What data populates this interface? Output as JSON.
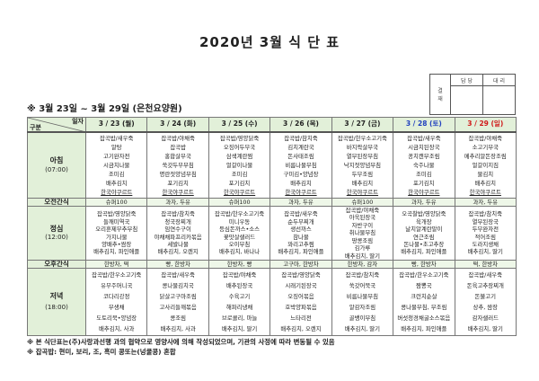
{
  "title": "2020년 3월 식 단 표",
  "approval": {
    "label": "결\n재",
    "label_top": "결",
    "label_bottom": "재",
    "col1": "담 당",
    "col2": "대 리"
  },
  "subtitle": "※ 3월 23일 ~ 3월 29일 (은천요양원)",
  "header": {
    "corner_top": "일자",
    "corner_bottom": "구분"
  },
  "colors": {
    "header_bg": "#e2f0d9",
    "saturday": "#1f3fbf",
    "sunday": "#d01818"
  },
  "days": [
    {
      "label": "3 / 23 (월)",
      "type": "weekday"
    },
    {
      "label": "3 / 24 (화)",
      "type": "weekday"
    },
    {
      "label": "3 / 25 (수)",
      "type": "weekday"
    },
    {
      "label": "3 / 26 (목)",
      "type": "weekday"
    },
    {
      "label": "3 / 27 (금)",
      "type": "weekday"
    },
    {
      "label": "3 / 28 (토)",
      "type": "saturday"
    },
    {
      "label": "3 / 29 (일)",
      "type": "sunday"
    }
  ],
  "meals": [
    {
      "id": "breakfast",
      "name": "아침",
      "time": "(07:00)",
      "menus": [
        [
          "잡곡밥/새우죽",
          "알탕",
          "고기완자전",
          "시금치나물",
          "조미김",
          "배추김치",
          "한국야쿠르트"
        ],
        [
          "잡곡밥/야채죽",
          "잡곡밥",
          "홍합살무국",
          "쑥갓두부무침",
          "명란젓양념무침",
          "포기김치",
          "한국야쿠르트"
        ],
        [
          "잡곡밥/영양닭죽",
          "오징어두부국",
          "삼색계란찜",
          "얼갈이나물",
          "조미김",
          "포기김치",
          "한국야쿠르트"
        ],
        [
          "잡곡밥/참치죽",
          "김치계란국",
          "돈사태조림",
          "비름나물무침",
          "구미김•양념장",
          "배추김치",
          "한국야쿠르트"
        ],
        [
          "잡곡밥/한우소고기죽",
          "바지락살무국",
          "열무된장무침",
          "낙지젓양념무침",
          "두부조림",
          "배추김치",
          "한국야쿠르트"
        ],
        [
          "잡곡밥/새우죽",
          "시금치된장국",
          "꽁치캔무조림",
          "숙주나물",
          "조미김",
          "포기김치",
          "한국야쿠르트"
        ],
        [
          "잡곡밥/야채죽",
          "소고기무국",
          "메추리알돈장조림",
          "얼갈이지짐",
          "물김치",
          "배추김치",
          "한국야쿠르트"
        ]
      ]
    },
    {
      "id": "morning-snack",
      "name": "오전간식",
      "menus": [
        "슈퍼100",
        "과자, 두유",
        "슈퍼100",
        "과자, 두유",
        "슈퍼100",
        "과자, 두유",
        "과자, 두유"
      ]
    },
    {
      "id": "lunch",
      "name": "정심",
      "time": "(12:00)",
      "menus": [
        [
          "잡곡밥/영양닭죽",
          "들깨미역국",
          "오리훈제부추무침",
          "가지나물",
          "양배추•쌈장",
          "배추김치, 파인애플"
        ],
        [
          "잡곡밥/참치죽",
          "청국장찌개",
          "임연수구이",
          "야채채파프리카볶음",
          "세발나물",
          "배추김치, 오렌지"
        ],
        [
          "잡곡밥/한우소고기죽",
          "미니우동",
          "등심돈까스•소스",
          "꽃맛살샐러드",
          "오이무침",
          "배추김치, 바나나"
        ],
        [
          "잡곡밥/새우죽",
          "순두부찌개",
          "생선까스",
          "참나물",
          "꽈리고추찜",
          "배추김치, 파인애플"
        ],
        [
          "잡곡밥/야채죽",
          "아욱된장국",
          "자반구이",
          "취나물무침",
          "땅콩조림",
          "김가루",
          "배추김치, 딸기"
        ],
        [
          "오곡찰밥/영양닭죽",
          "육개장",
          "날치알계란말이",
          "연근조림",
          "돈나물•초고추장",
          "배추김치, 파인애플"
        ],
        [
          "잡곡밥/참치죽",
          "열무된장국",
          "두부완자전",
          "적어조림",
          "도라지생채",
          "배추김치, 딸기"
        ]
      ]
    },
    {
      "id": "afternoon-snack",
      "name": "오후간식",
      "menus": [
        "한방차, 떡",
        "빵, 한방차",
        "한방차, 빵",
        "고구마, 한방차",
        "한방차, 감자",
        "빵, 한방차",
        "떡, 한방차"
      ]
    },
    {
      "id": "dinner",
      "name": "저녁",
      "time": "(18:00)",
      "menus": [
        [
          "잡곡밥/한우소고기죽",
          "유부주머니국",
          "코다리강정",
          "무생채",
          "도토리묵•양념장",
          "배추김치, 사과"
        ],
        [
          "잡곡밥/새우죽",
          "콩나물김치국",
          "닭살고구마조림",
          "고사리들깨볶음",
          "콩조림",
          "배추김치, 사과"
        ],
        [
          "잡곡밥/야채죽",
          "배추된장국",
          "수육고기",
          "해파리냉채",
          "브로콜리, 마늘",
          "배추김치, 딸기"
        ],
        [
          "잡곡밥/영양닭죽",
          "시래기된장국",
          "오징어볶음",
          "호박양파볶음",
          "느타리전",
          "배추김치, 오렌지"
        ],
        [
          "잡곡밥/참치죽",
          "쑥갓어묵국",
          "비름나물무침",
          "알감자조림",
          "골뱅이무침",
          "배추김치, 딸기"
        ],
        [
          "잡곡밥/한우소고기죽",
          "짬뽕국",
          "크런치순살",
          "콩나물무침, 무조림",
          "버섯청경채굴소스볶음",
          "배추김치, 파인애플"
        ],
        [
          "잡곡밥/새우죽",
          "돈육고추장찌개",
          "돈불고기",
          "상추, 쌈장",
          "감자샐러드",
          "배추김치, 딸기"
        ]
      ]
    }
  ],
  "notes": [
    "※ 본 식단표는(주)사랑과선행 과의 협약으로 영양사에 의해 작성되었으며, 기관의 사정에 따라 변동될 수 있음",
    "※ 잡곡밥: 현미, 보리, 조, 흑미 콩또는(넝쿨콩) 혼합"
  ]
}
